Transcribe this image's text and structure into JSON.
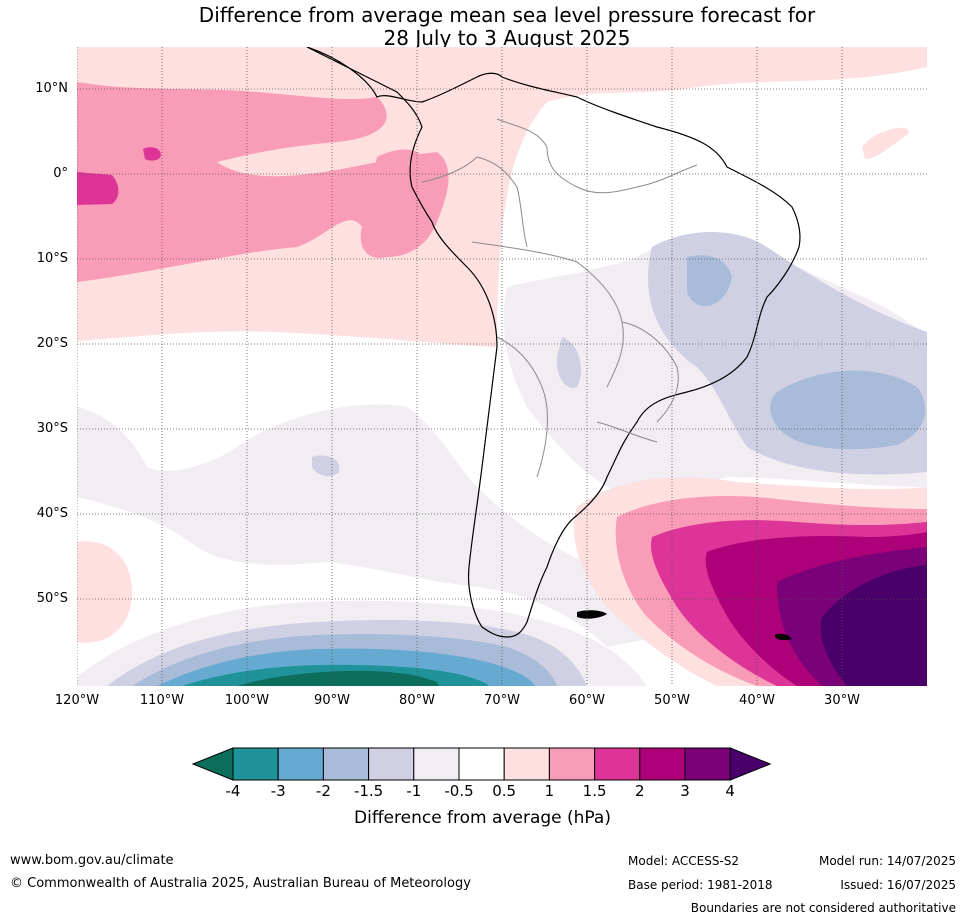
{
  "title": {
    "line1": "Difference from average mean sea level pressure forecast for",
    "line2": "28 July to 3 August 2025"
  },
  "map": {
    "region": "South America",
    "lat_labels": [
      "10°N",
      "0°",
      "10°S",
      "20°S",
      "30°S",
      "40°S",
      "50°S"
    ],
    "lon_labels": [
      "120°W",
      "110°W",
      "100°W",
      "90°W",
      "80°W",
      "70°W",
      "60°W",
      "50°W",
      "40°W",
      "30°W"
    ],
    "gridlines": "dotted"
  },
  "colorbar": {
    "ticks": [
      "-4",
      "-3",
      "-2",
      "-1.5",
      "-1",
      "-0.5",
      "0.5",
      "1",
      "1.5",
      "2",
      "3",
      "4"
    ],
    "colors": [
      "#0d6e5c",
      "#1f9399",
      "#67aad1",
      "#a8bbd8",
      "#cfd0e3",
      "#f1edf3",
      "#ffffff",
      "#fde0df",
      "#f99cb8",
      "#dd3597",
      "#ad0179",
      "#7a0177",
      "#49006a"
    ],
    "label": "Difference from average (hPa)"
  },
  "footer": {
    "website": "www.bom.gov.au/climate",
    "copyright": "© Commonwealth of Australia 2025, Australian Bureau of Meteorology",
    "model": "Model: ACCESS-S2",
    "base_period": "Base period: 1981-2018",
    "model_run": "Model run: 14/07/2025",
    "issued": "Issued: 16/07/2025",
    "disclaimer": "Boundaries are not considered authoritative"
  }
}
